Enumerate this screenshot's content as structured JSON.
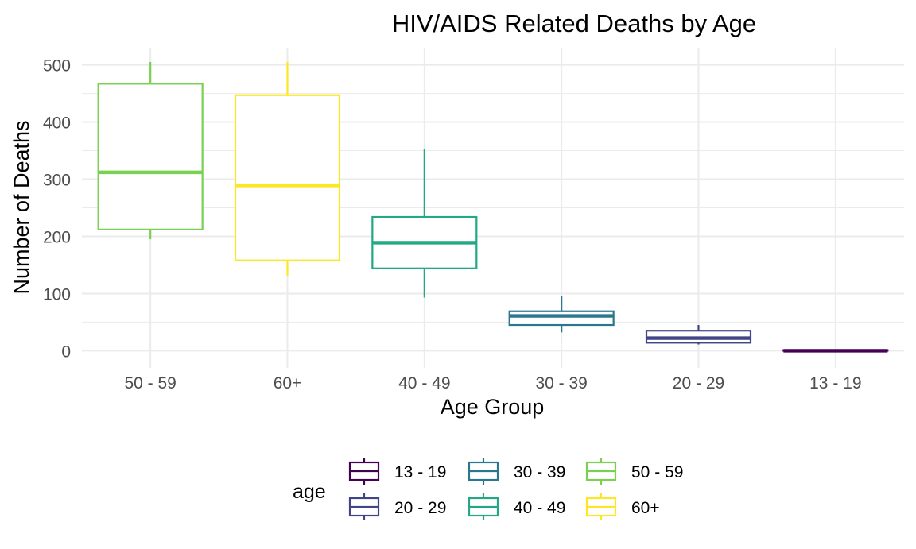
{
  "chart_data": {
    "type": "boxplot",
    "title": "HIV/AIDS Related Deaths by Age",
    "xlabel": "Age Group",
    "ylabel": "Number of Deaths",
    "ylim": [
      -30,
      530
    ],
    "yticks": [
      0,
      100,
      200,
      300,
      400,
      500
    ],
    "grid": true,
    "legend_position": "bottom",
    "legend_title": "age",
    "categories": [
      "50 - 59",
      "60+",
      "40 - 49",
      "30 - 39",
      "20 - 29",
      "13 - 19"
    ],
    "series": [
      {
        "name": "50 - 59",
        "min": 195,
        "q1": 212,
        "median": 312,
        "q3": 467,
        "max": 505,
        "color": "#7AD151"
      },
      {
        "name": "60+",
        "min": 130,
        "q1": 158,
        "median": 289,
        "q3": 447,
        "max": 505,
        "color": "#FDE725"
      },
      {
        "name": "40 - 49",
        "min": 93,
        "q1": 144,
        "median": 189,
        "q3": 234,
        "max": 353,
        "color": "#22A884"
      },
      {
        "name": "30 - 39",
        "min": 32,
        "q1": 45,
        "median": 61,
        "q3": 69,
        "max": 95,
        "color": "#2A788E"
      },
      {
        "name": "20 - 29",
        "min": 11,
        "q1": 14,
        "median": 22,
        "q3": 35,
        "max": 45,
        "color": "#414487"
      },
      {
        "name": "13 - 19",
        "min": 0,
        "q1": 0,
        "median": 0,
        "q3": 1,
        "max": 1,
        "color": "#440154"
      }
    ],
    "legend_items": [
      {
        "label": "13 - 19",
        "color": "#440154"
      },
      {
        "label": "20 - 29",
        "color": "#414487"
      },
      {
        "label": "30 - 39",
        "color": "#2A788E"
      },
      {
        "label": "40 - 49",
        "color": "#22A884"
      },
      {
        "label": "50 - 59",
        "color": "#7AD151"
      },
      {
        "label": "60+",
        "color": "#FDE725"
      }
    ]
  }
}
